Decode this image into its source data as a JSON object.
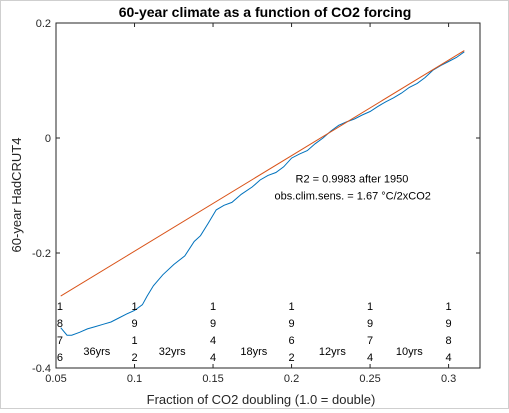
{
  "chart_data": {
    "type": "line",
    "title": "60-year climate as a function of CO2 forcing",
    "xlabel": "Fraction of CO2 doubling (1.0 = double)",
    "ylabel": "60-year HadCRUT4",
    "xlim": [
      0.05,
      0.32
    ],
    "ylim": [
      -0.4,
      0.2
    ],
    "xticks": [
      0.05,
      0.1,
      0.15,
      0.2,
      0.25,
      0.3
    ],
    "yticks": [
      -0.4,
      -0.2,
      0,
      0.2
    ],
    "xtick_labels": [
      "0.05",
      "0.1",
      "0.15",
      "0.2",
      "0.25",
      "0.3"
    ],
    "ytick_labels": [
      "-0.4",
      "-0.2",
      "0",
      "0.2"
    ],
    "grid": false,
    "series": [
      {
        "color": "#0072BD",
        "x": [
          0.053,
          0.057,
          0.06,
          0.065,
          0.07,
          0.075,
          0.08,
          0.085,
          0.09,
          0.095,
          0.1,
          0.105,
          0.108,
          0.112,
          0.118,
          0.125,
          0.132,
          0.138,
          0.142,
          0.147,
          0.152,
          0.157,
          0.162,
          0.168,
          0.175,
          0.18,
          0.185,
          0.19,
          0.195,
          0.2,
          0.205,
          0.21,
          0.215,
          0.22,
          0.225,
          0.23,
          0.235,
          0.24,
          0.245,
          0.25,
          0.255,
          0.26,
          0.265,
          0.27,
          0.275,
          0.28,
          0.285,
          0.29,
          0.295,
          0.3,
          0.305,
          0.31
        ],
        "y": [
          -0.33,
          -0.343,
          -0.343,
          -0.338,
          -0.332,
          -0.328,
          -0.324,
          -0.32,
          -0.313,
          -0.306,
          -0.3,
          -0.29,
          -0.275,
          -0.257,
          -0.238,
          -0.22,
          -0.205,
          -0.18,
          -0.17,
          -0.148,
          -0.125,
          -0.117,
          -0.112,
          -0.098,
          -0.085,
          -0.073,
          -0.065,
          -0.06,
          -0.05,
          -0.035,
          -0.028,
          -0.022,
          -0.01,
          0.0,
          0.012,
          0.022,
          0.028,
          0.033,
          0.04,
          0.046,
          0.055,
          0.063,
          0.07,
          0.078,
          0.088,
          0.095,
          0.105,
          0.118,
          0.126,
          0.133,
          0.14,
          0.15
        ]
      },
      {
        "color": "#D95319",
        "x": [
          0.053,
          0.31
        ],
        "y": [
          -0.275,
          0.152
        ]
      }
    ],
    "annotations": {
      "fit_lines": [
        "R2 = 0.9983 after 1950",
        "obs.clim.sens. = 1.67 °C/2xCO2"
      ],
      "fit_anchor": [
        0.2,
        -0.0775
      ],
      "years": [
        {
          "x": 0.0525,
          "digits": [
            "1",
            "8",
            "7",
            "6"
          ]
        },
        {
          "x": 0.1,
          "digits": [
            "1",
            "9",
            "1",
            "2"
          ]
        },
        {
          "x": 0.15,
          "digits": [
            "1",
            "9",
            "4",
            "4"
          ]
        },
        {
          "x": 0.2,
          "digits": [
            "1",
            "9",
            "6",
            "2"
          ]
        },
        {
          "x": 0.25,
          "digits": [
            "1",
            "9",
            "7",
            "4"
          ]
        },
        {
          "x": 0.3,
          "digits": [
            "1",
            "9",
            "8",
            "4"
          ]
        }
      ],
      "spans": [
        {
          "x": 0.076,
          "label": "36yrs"
        },
        {
          "x": 0.124,
          "label": "32yrs"
        },
        {
          "x": 0.176,
          "label": "18yrs"
        },
        {
          "x": 0.226,
          "label": "12yrs"
        },
        {
          "x": 0.275,
          "label": "10yrs"
        }
      ]
    }
  }
}
